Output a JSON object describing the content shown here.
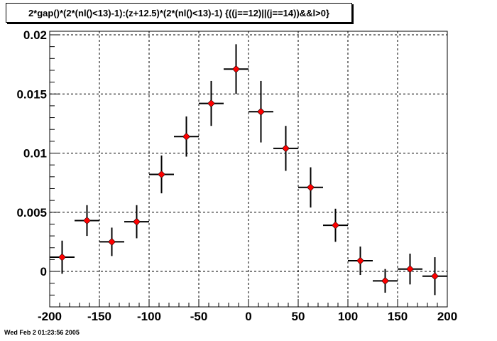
{
  "title": "2*gap()*(2*(nl()<13)-1):(z+12.5)*(2*(nl()<13)-1) {((j==12)||(j==14))&&l>0}",
  "timestamp": "Wed Feb  2 01:23:56 2005",
  "colors": {
    "marker": "#ff0000",
    "axis": "#000000",
    "grid": "#000000"
  },
  "chart_data": {
    "type": "scatter",
    "xlim": [
      -200,
      200
    ],
    "ylim": [
      -0.003,
      0.0203
    ],
    "grid": true,
    "x_tick_labels": [
      "-200",
      "-150",
      "-100",
      "-50",
      "0",
      "50",
      "100",
      "150",
      "200"
    ],
    "y_tick_labels": [
      "0",
      "0.005",
      "0.01",
      "0.015",
      "0.02"
    ],
    "x_ticks": [
      -200,
      -150,
      -100,
      -50,
      0,
      50,
      100,
      150,
      200
    ],
    "y_ticks": [
      0,
      0.005,
      0.01,
      0.015,
      0.02
    ],
    "x_half_width": 12.5,
    "points": [
      {
        "x": -187.5,
        "y": 0.0012,
        "err": 0.0014
      },
      {
        "x": -162.5,
        "y": 0.0043,
        "err": 0.0013
      },
      {
        "x": -137.5,
        "y": 0.0025,
        "err": 0.0012
      },
      {
        "x": -112.5,
        "y": 0.0042,
        "err": 0.0014
      },
      {
        "x": -87.5,
        "y": 0.0082,
        "err": 0.0016
      },
      {
        "x": -62.5,
        "y": 0.0114,
        "err": 0.0017
      },
      {
        "x": -37.5,
        "y": 0.0142,
        "err": 0.0019
      },
      {
        "x": -12.5,
        "y": 0.0171,
        "err": 0.0021
      },
      {
        "x": 12.5,
        "y": 0.0135,
        "err": 0.0026
      },
      {
        "x": 37.5,
        "y": 0.0104,
        "err": 0.0019
      },
      {
        "x": 62.5,
        "y": 0.0071,
        "err": 0.0017
      },
      {
        "x": 87.5,
        "y": 0.0039,
        "err": 0.0014
      },
      {
        "x": 112.5,
        "y": 0.0009,
        "err": 0.0012
      },
      {
        "x": 137.5,
        "y": -0.0008,
        "err": 0.001
      },
      {
        "x": 162.5,
        "y": 0.0002,
        "err": 0.0013
      },
      {
        "x": 187.5,
        "y": -0.0004,
        "err": 0.0016
      }
    ]
  }
}
